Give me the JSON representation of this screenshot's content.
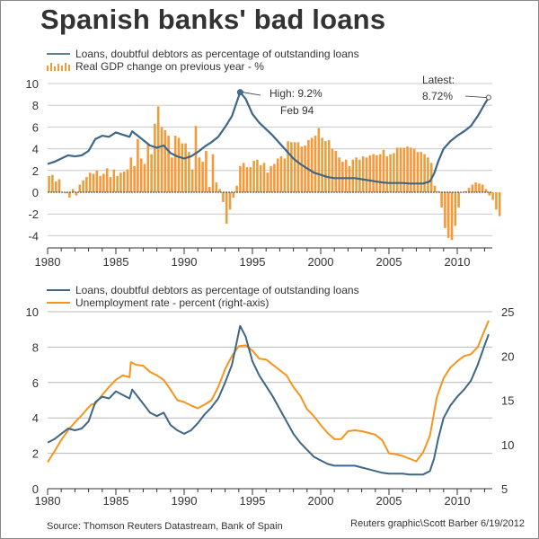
{
  "title": "Spanish banks' bad loans",
  "colors": {
    "loans": "#3e6686",
    "gdp": "#f39a3a",
    "unemployment": "#f7941d",
    "grid": "#c8c8c8",
    "text": "#333333"
  },
  "footer": {
    "source": "Source: Thomson Reuters Datastream, Bank of Spain",
    "credit": "Reuters graphic\\Scott Barber 6/19/2012"
  },
  "chart_data": [
    {
      "type": "bar",
      "subtype": "bar+line",
      "title": "",
      "legend": [
        {
          "label": "Loans, doubtful debtors as percentage of outstanding loans",
          "kind": "line",
          "color": "#3e6686"
        },
        {
          "label": "Real GDP change on previous year - %",
          "kind": "bar",
          "color": "#f39a3a"
        }
      ],
      "legend_position": "top-left",
      "xlabel": "",
      "ylabel": "",
      "xlim": [
        1980,
        2012.5
      ],
      "ylim": [
        -4,
        10
      ],
      "x_ticks": [
        "1980",
        "1985",
        "1990",
        "1995",
        "2000",
        "2005",
        "2010"
      ],
      "y_ticks": [
        "10",
        "8",
        "6",
        "4",
        "2",
        "0",
        "-2",
        "-4"
      ],
      "grid": true,
      "annotations": [
        {
          "label_line1": "High: 9.2%",
          "label_line2": "Feb 94",
          "x": 1994.1,
          "y": 9.2
        },
        {
          "label_line1": "Latest:",
          "label_line2": "8.72%",
          "x": 2012.3,
          "y": 8.72
        }
      ],
      "gdp_series": {
        "name": "Real GDP change on previous year - %",
        "start": 1980.0,
        "step": 0.25,
        "values": [
          1.5,
          1.6,
          1.0,
          1.2,
          0.0,
          -0.1,
          -0.5,
          0.3,
          -0.3,
          0.7,
          1.1,
          1.4,
          1.8,
          1.7,
          2.0,
          1.5,
          1.7,
          2.2,
          1.4,
          2.1,
          1.5,
          1.8,
          1.9,
          2.1,
          3.2,
          2.4,
          4.9,
          3.1,
          2.6,
          4.4,
          3.5,
          6.3,
          7.9,
          6.0,
          5.7,
          5.2,
          3.2,
          5.2,
          5.0,
          4.5,
          4.5,
          3.7,
          2.1,
          6.1,
          3.2,
          2.8,
          3.8,
          0.5,
          3.5,
          0.9,
          0.3,
          -0.9,
          -2.9,
          -1.6,
          -0.5,
          0.6,
          2.4,
          2.7,
          2.3,
          2.3,
          2.9,
          3.0,
          2.5,
          2.7,
          1.8,
          2.4,
          2.6,
          3.1,
          3.3,
          3.1,
          4.7,
          4.6,
          4.6,
          4.6,
          4.2,
          4.3,
          4.8,
          5.0,
          5.2,
          5.9,
          5.0,
          4.7,
          4.8,
          4.0,
          3.8,
          3.2,
          2.8,
          3.0,
          2.4,
          3.0,
          3.2,
          3.0,
          3.3,
          3.2,
          3.4,
          3.5,
          3.4,
          3.5,
          3.9,
          3.3,
          3.5,
          3.6,
          4.1,
          4.1,
          4.1,
          4.2,
          4.1,
          4.0,
          3.7,
          3.7,
          3.5,
          3.2,
          2.7,
          0.6,
          0.1,
          -1.4,
          -3.3,
          -4.2,
          -4.4,
          -3.1,
          -1.4,
          0.0,
          0.1,
          0.4,
          0.7,
          0.9,
          0.8,
          0.7,
          0.3,
          -0.3,
          -0.7,
          -1.6,
          -2.2
        ]
      },
      "loans_series": {
        "name": "Loans, doubtful debtors as percentage of outstanding loans",
        "x": [
          1980.0,
          1980.5,
          1981.0,
          1981.5,
          1982.0,
          1982.5,
          1983.0,
          1983.5,
          1984.0,
          1984.5,
          1985.0,
          1985.5,
          1986.0,
          1986.2,
          1986.5,
          1987.0,
          1987.5,
          1988.0,
          1988.5,
          1989.0,
          1989.5,
          1990.0,
          1990.5,
          1991.0,
          1991.5,
          1992.0,
          1992.5,
          1993.0,
          1993.5,
          1994.1,
          1994.5,
          1995.0,
          1995.5,
          1996.0,
          1996.5,
          1997.0,
          1997.5,
          1998.0,
          1998.5,
          1999.0,
          1999.5,
          2000.0,
          2000.5,
          2001.0,
          2001.5,
          2002.0,
          2002.5,
          2003.0,
          2003.5,
          2004.0,
          2004.5,
          2005.0,
          2005.5,
          2006.0,
          2006.5,
          2007.0,
          2007.5,
          2008.0,
          2008.3,
          2008.6,
          2009.0,
          2009.5,
          2010.0,
          2010.5,
          2011.0,
          2011.5,
          2012.0,
          2012.3
        ],
        "y": [
          2.6,
          2.8,
          3.1,
          3.4,
          3.3,
          3.4,
          3.8,
          4.9,
          5.2,
          5.1,
          5.5,
          5.3,
          5.1,
          5.6,
          5.3,
          4.8,
          4.3,
          4.1,
          4.3,
          3.6,
          3.3,
          3.1,
          3.3,
          3.7,
          4.2,
          4.6,
          5.1,
          6.0,
          7.0,
          9.2,
          8.6,
          7.2,
          6.4,
          5.8,
          5.2,
          4.5,
          3.8,
          3.1,
          2.6,
          2.2,
          1.8,
          1.6,
          1.4,
          1.3,
          1.3,
          1.3,
          1.3,
          1.2,
          1.1,
          1.0,
          0.9,
          0.85,
          0.85,
          0.85,
          0.8,
          0.8,
          0.8,
          1.0,
          1.7,
          2.8,
          4.0,
          4.7,
          5.2,
          5.6,
          6.1,
          7.0,
          8.1,
          8.72
        ]
      }
    },
    {
      "type": "line",
      "title": "",
      "legend": [
        {
          "label": "Loans, doubtful debtors as percentage of outstanding loans",
          "color": "#3e6686"
        },
        {
          "label": "Unemployment rate - percent (right-axis)",
          "color": "#f7941d"
        }
      ],
      "legend_position": "top-left",
      "xlabel": "",
      "ylabel": "",
      "xlim": [
        1980,
        2012.5
      ],
      "ylim": [
        0,
        10
      ],
      "ylim_right": [
        5,
        25
      ],
      "x_ticks": [
        "1980",
        "1985",
        "1990",
        "1995",
        "2000",
        "2005",
        "2010"
      ],
      "y_ticks": [
        "10",
        "8",
        "6",
        "4",
        "2",
        "0"
      ],
      "y_ticks_right": [
        "25",
        "20",
        "15",
        "10",
        "5"
      ],
      "grid": true,
      "series": [
        {
          "name": "Loans, doubtful debtors as percentage of outstanding loans",
          "axis": "left",
          "x": [
            1980.0,
            1980.5,
            1981.0,
            1981.5,
            1982.0,
            1982.5,
            1983.0,
            1983.5,
            1984.0,
            1984.5,
            1985.0,
            1985.5,
            1986.0,
            1986.2,
            1986.5,
            1987.0,
            1987.5,
            1988.0,
            1988.5,
            1989.0,
            1989.5,
            1990.0,
            1990.5,
            1991.0,
            1991.5,
            1992.0,
            1992.5,
            1993.0,
            1993.5,
            1994.1,
            1994.5,
            1995.0,
            1995.5,
            1996.0,
            1996.5,
            1997.0,
            1997.5,
            1998.0,
            1998.5,
            1999.0,
            1999.5,
            2000.0,
            2000.5,
            2001.0,
            2001.5,
            2002.0,
            2002.5,
            2003.0,
            2003.5,
            2004.0,
            2004.5,
            2005.0,
            2005.5,
            2006.0,
            2006.5,
            2007.0,
            2007.5,
            2008.0,
            2008.3,
            2008.6,
            2009.0,
            2009.5,
            2010.0,
            2010.5,
            2011.0,
            2011.5,
            2012.0,
            2012.3
          ],
          "y": [
            2.6,
            2.8,
            3.1,
            3.4,
            3.3,
            3.4,
            3.8,
            4.9,
            5.2,
            5.1,
            5.5,
            5.3,
            5.1,
            5.6,
            5.3,
            4.8,
            4.3,
            4.1,
            4.3,
            3.6,
            3.3,
            3.1,
            3.3,
            3.7,
            4.2,
            4.6,
            5.1,
            6.0,
            7.0,
            9.2,
            8.6,
            7.2,
            6.4,
            5.8,
            5.2,
            4.5,
            3.8,
            3.1,
            2.6,
            2.2,
            1.8,
            1.6,
            1.4,
            1.3,
            1.3,
            1.3,
            1.3,
            1.2,
            1.1,
            1.0,
            0.9,
            0.85,
            0.85,
            0.85,
            0.8,
            0.8,
            0.8,
            1.0,
            1.7,
            2.8,
            4.0,
            4.7,
            5.2,
            5.6,
            6.1,
            7.0,
            8.1,
            8.72
          ]
        },
        {
          "name": "Unemployment rate - percent (right-axis)",
          "axis": "right",
          "x": [
            1980.0,
            1980.5,
            1981.0,
            1981.5,
            1982.0,
            1982.5,
            1983.0,
            1983.2,
            1983.5,
            1984.0,
            1984.5,
            1985.0,
            1985.5,
            1986.0,
            1986.1,
            1986.5,
            1987.0,
            1987.5,
            1988.0,
            1988.5,
            1989.0,
            1989.5,
            1990.0,
            1990.5,
            1991.0,
            1991.5,
            1992.0,
            1992.5,
            1993.0,
            1993.5,
            1994.0,
            1994.5,
            1995.0,
            1995.5,
            1996.0,
            1996.5,
            1997.0,
            1997.5,
            1998.0,
            1998.5,
            1999.0,
            1999.5,
            2000.0,
            2000.5,
            2001.0,
            2001.5,
            2002.0,
            2002.5,
            2003.0,
            2003.5,
            2004.0,
            2004.5,
            2005.0,
            2005.5,
            2006.0,
            2006.5,
            2007.0,
            2007.5,
            2008.0,
            2008.5,
            2009.0,
            2009.5,
            2010.0,
            2010.5,
            2011.0,
            2011.5,
            2012.0,
            2012.3
          ],
          "y": [
            8.0,
            9.2,
            10.5,
            11.6,
            12.5,
            13.3,
            14.2,
            14.5,
            14.6,
            15.6,
            16.5,
            17.3,
            17.8,
            17.6,
            19.3,
            19.0,
            18.9,
            18.2,
            17.8,
            17.3,
            16.2,
            15.0,
            14.8,
            14.4,
            14.1,
            14.5,
            15.0,
            16.5,
            18.5,
            20.0,
            21.1,
            21.2,
            20.6,
            19.7,
            19.6,
            19.0,
            18.4,
            17.8,
            16.5,
            15.5,
            14.0,
            13.2,
            12.2,
            11.3,
            10.6,
            10.6,
            11.5,
            11.6,
            11.5,
            11.3,
            11.1,
            10.5,
            9.0,
            8.9,
            8.7,
            8.4,
            8.1,
            9.1,
            11.0,
            15.3,
            17.5,
            18.7,
            19.4,
            20.0,
            20.2,
            21.0,
            22.9,
            24.0
          ]
        }
      ]
    }
  ]
}
